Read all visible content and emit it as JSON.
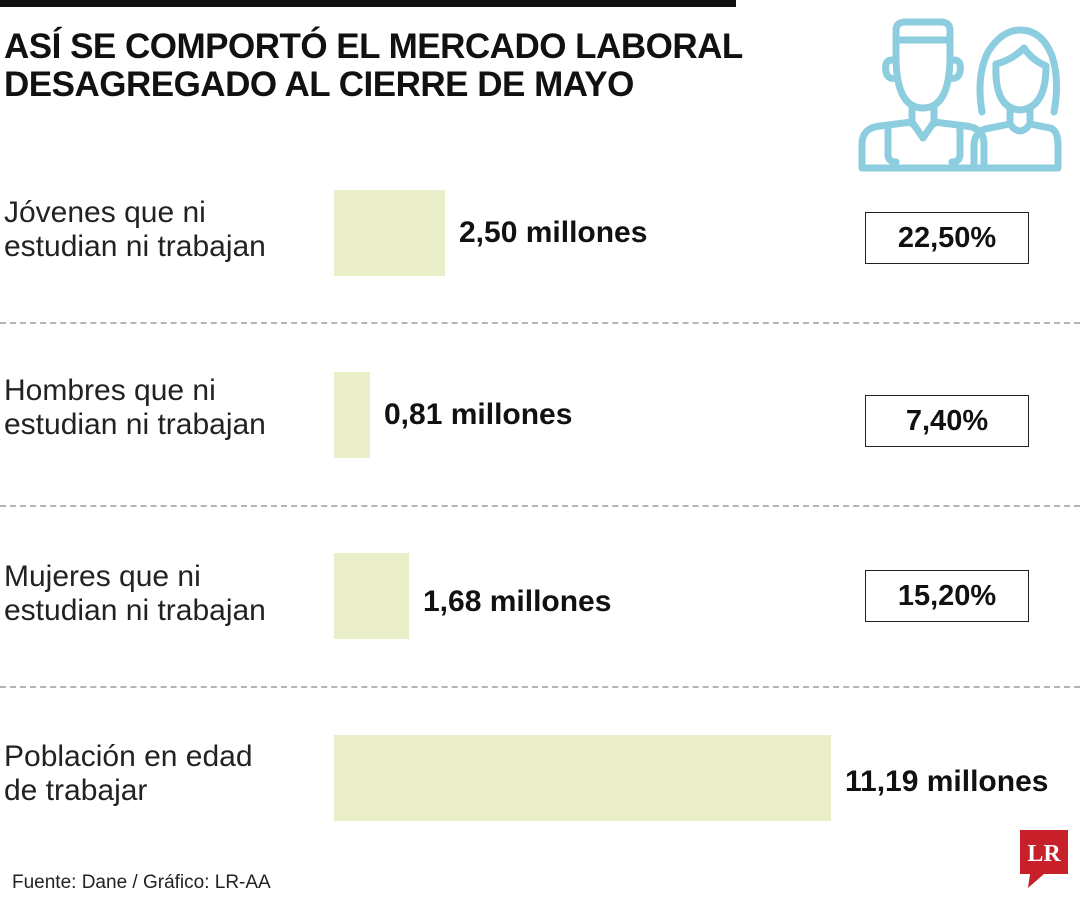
{
  "title_lines": [
    "ASÍ SE COMPORTÓ EL MERCADO LABORAL",
    "DESAGREGADO AL CIERRE DE MAYO"
  ],
  "icon": "people-icon",
  "colors": {
    "bar": "#ebefc9",
    "icon": "#8ccde0",
    "logo": "#c8202a",
    "divider": "#b5b5b5"
  },
  "chart_data": {
    "type": "bar",
    "orientation": "horizontal",
    "categories": [
      [
        "Jóvenes que ni",
        "estudian ni trabajan"
      ],
      [
        "Hombres que ni",
        "estudian ni trabajan"
      ],
      [
        "Mujeres que ni",
        "estudian ni trabajan"
      ],
      [
        "Población en edad",
        "de trabajar"
      ]
    ],
    "values": [
      2.5,
      0.81,
      1.68,
      11.19
    ],
    "value_labels": [
      "2,50 millones",
      "0,81 millones",
      "1,68 millones",
      "11,19 millones"
    ],
    "percent_labels": [
      "22,50%",
      "7,40%",
      "15,20%"
    ],
    "grid": false,
    "legend": "none"
  },
  "source": "Fuente: Dane / Gráfico: LR-AA",
  "logo_text": "LR"
}
